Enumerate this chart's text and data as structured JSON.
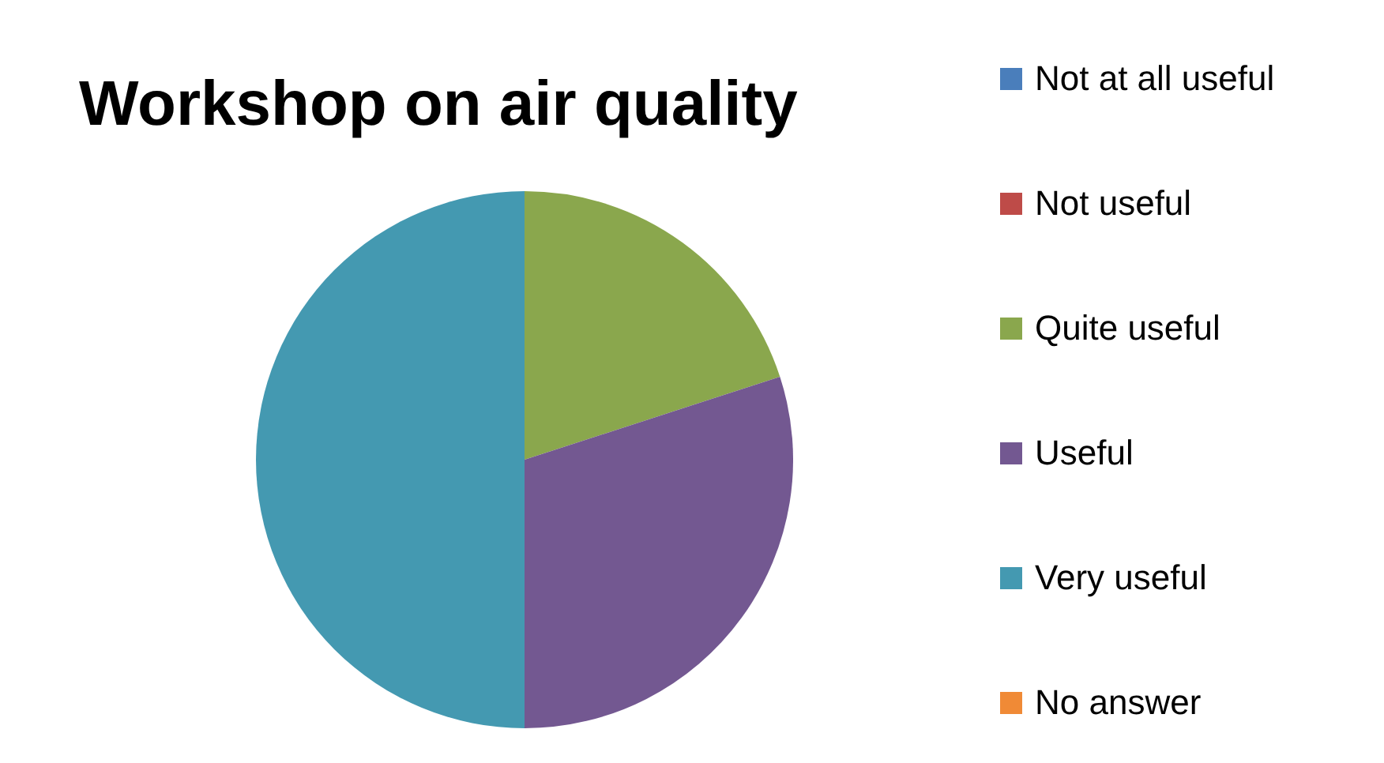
{
  "chart_data": {
    "type": "pie",
    "title": "Workshop on air quality",
    "categories": [
      "Not at all useful",
      "Not useful",
      "Quite useful",
      "Useful",
      "Very useful",
      "No answer"
    ],
    "values": [
      0,
      0,
      20,
      30,
      50,
      0
    ],
    "colors": [
      "#4a7ebb",
      "#be4b48",
      "#8aa74d",
      "#735891",
      "#4499b1",
      "#f08a36"
    ],
    "legend": "right"
  }
}
